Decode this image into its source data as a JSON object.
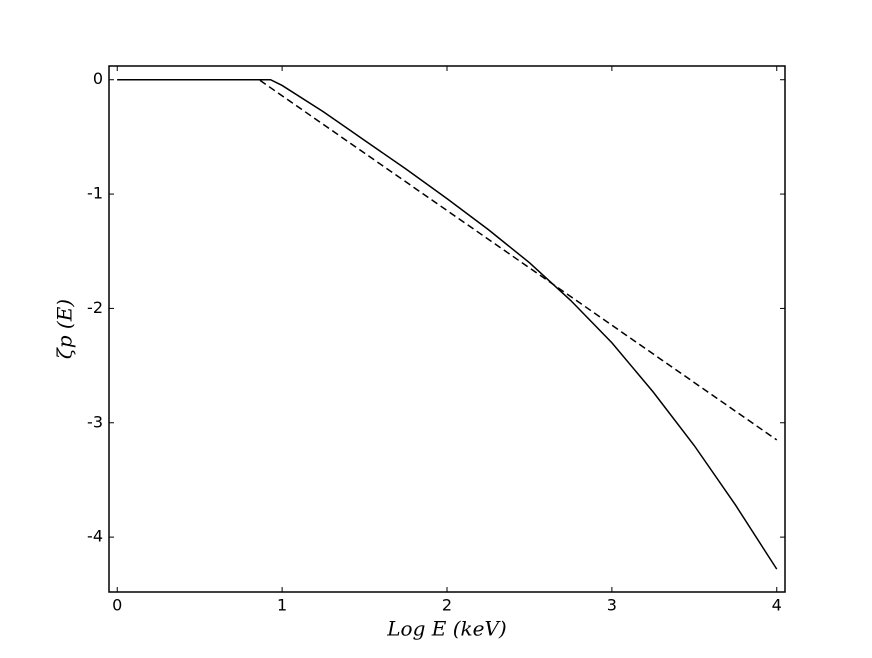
{
  "chart_data": {
    "type": "line",
    "xlabel": "Log E (keV)",
    "ylabel": "ζp (E)",
    "xlim": [
      -0.05,
      4.05
    ],
    "ylim": [
      -4.48,
      0.12
    ],
    "xticks": [
      0,
      1,
      2,
      3,
      4
    ],
    "yticks": [
      0,
      -1,
      -2,
      -3,
      -4
    ],
    "series": [
      {
        "color": "#000000",
        "style": "solid",
        "x": [
          0,
          0.93,
          1.0,
          1.25,
          1.5,
          1.75,
          2.0,
          2.25,
          2.5,
          2.75,
          3.0,
          3.25,
          3.5,
          3.75,
          4.0
        ],
        "values": [
          0,
          0,
          -0.05,
          -0.28,
          -0.53,
          -0.78,
          -1.04,
          -1.31,
          -1.6,
          -1.93,
          -2.3,
          -2.73,
          -3.2,
          -3.72,
          -4.28
        ]
      },
      {
        "color": "#000000",
        "style": "dashed",
        "x": [
          0,
          0.86,
          4.0
        ],
        "values": [
          0,
          0,
          -3.15
        ]
      }
    ]
  }
}
